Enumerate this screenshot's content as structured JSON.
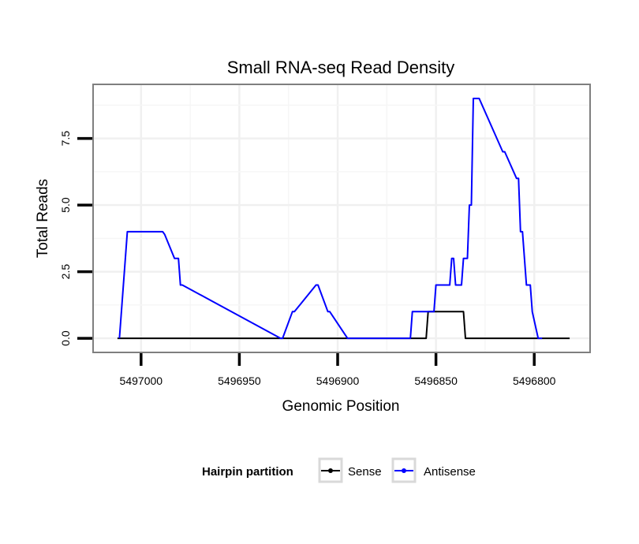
{
  "chart_data": {
    "type": "line",
    "title": "Small RNA-seq Read Density",
    "xlabel": "Genomic Position",
    "ylabel": "Total Reads",
    "x_reversed": true,
    "xlim": [
      5497024,
      5496772
    ],
    "ylim": [
      -0.5,
      9.5
    ],
    "x_ticks": [
      5497000,
      5496950,
      5496900,
      5496850,
      5496800
    ],
    "x_tick_labels": [
      "5497000",
      "5496950",
      "5496900",
      "5496850",
      "5496800"
    ],
    "y_ticks": [
      0,
      2.5,
      5,
      7.5
    ],
    "y_tick_labels": [
      "0.0",
      "2.5",
      "5.0",
      "7.5"
    ],
    "grid": true,
    "legend": {
      "title": "Hairpin partition",
      "position": "bottom"
    },
    "series": [
      {
        "name": "Sense",
        "color": "#000000",
        "x": [
          5497012,
          5496855,
          5496854,
          5496836,
          5496835,
          5496782
        ],
        "y": [
          0,
          0,
          1,
          1,
          0,
          0
        ]
      },
      {
        "name": "Antisense",
        "color": "#0000ff",
        "x": [
          5497011,
          5497009,
          5497007,
          5496989,
          5496988,
          5496983,
          5496982,
          5496981,
          5496980,
          5496979,
          5496929,
          5496928,
          5496923,
          5496922,
          5496911,
          5496910,
          5496905,
          5496904,
          5496895,
          5496894,
          5496863,
          5496862,
          5496851,
          5496850,
          5496843,
          5496842,
          5496841,
          5496840,
          5496837,
          5496836,
          5496834,
          5496833,
          5496832,
          5496831,
          5496829,
          5496828,
          5496816,
          5496815,
          5496809,
          5496808,
          5496807,
          5496806,
          5496805,
          5496804,
          5496802,
          5496801,
          5496798,
          5496796
        ],
        "y": [
          0,
          2,
          4,
          4,
          3.9,
          3,
          3,
          3,
          2,
          2,
          0,
          0,
          1,
          1,
          2,
          2,
          1,
          1,
          0,
          0,
          0,
          1,
          1,
          2,
          2,
          3,
          3,
          2,
          2,
          3,
          3,
          5,
          5,
          9,
          9,
          9,
          7,
          7,
          6,
          6,
          4,
          4,
          3,
          2,
          2,
          1,
          0,
          0
        ]
      }
    ]
  }
}
